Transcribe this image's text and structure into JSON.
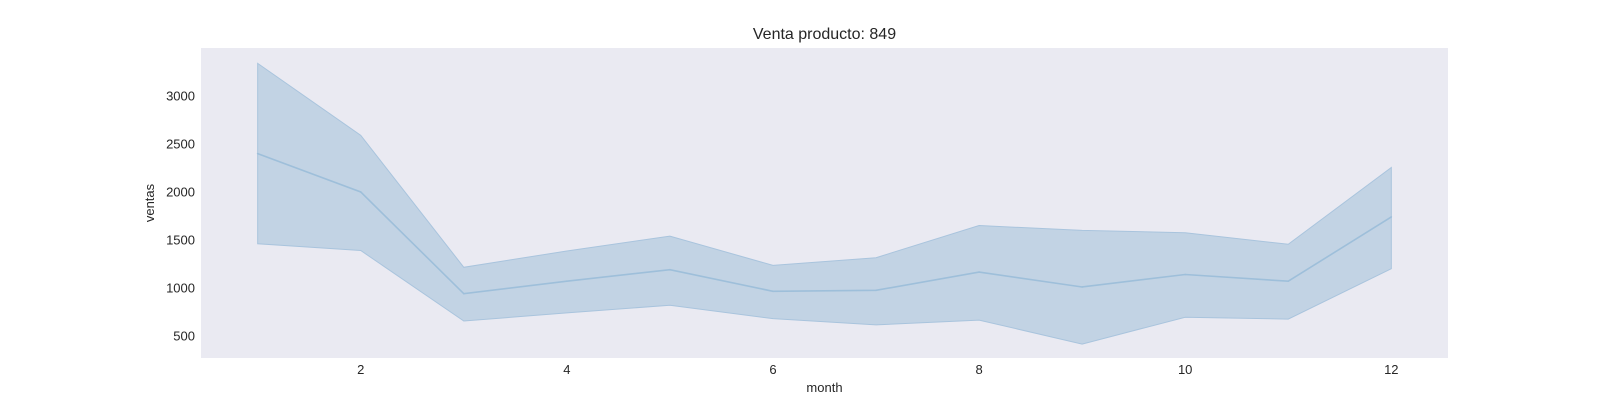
{
  "chart_data": {
    "type": "line",
    "title": "Venta producto: 849",
    "xlabel": "month",
    "ylabel": "ventas",
    "x": [
      1,
      2,
      3,
      4,
      5,
      6,
      7,
      8,
      9,
      10,
      11,
      12
    ],
    "series": [
      {
        "values": [
          2400,
          2000,
          940,
          1070,
          1190,
          965,
          975,
          1165,
          1010,
          1140,
          1070,
          1740
        ],
        "ci_lower": [
          1460,
          1390,
          655,
          740,
          820,
          680,
          615,
          665,
          415,
          695,
          675,
          1200
        ],
        "ci_upper": [
          3340,
          2590,
          1215,
          1385,
          1540,
          1235,
          1315,
          1650,
          1600,
          1575,
          1455,
          2255
        ]
      }
    ],
    "xticks": [
      2,
      4,
      6,
      8,
      10,
      12
    ],
    "yticks": [
      500,
      1000,
      1500,
      2000,
      2500,
      3000
    ],
    "xlim": [
      0.45,
      12.55
    ],
    "ylim": [
      270,
      3500
    ],
    "grid": false,
    "colors": {
      "plot_background": "#eaeaf2",
      "line": "#9ebfda",
      "band": "#c2d3e4",
      "band_edge": "#a9c4dd"
    }
  }
}
